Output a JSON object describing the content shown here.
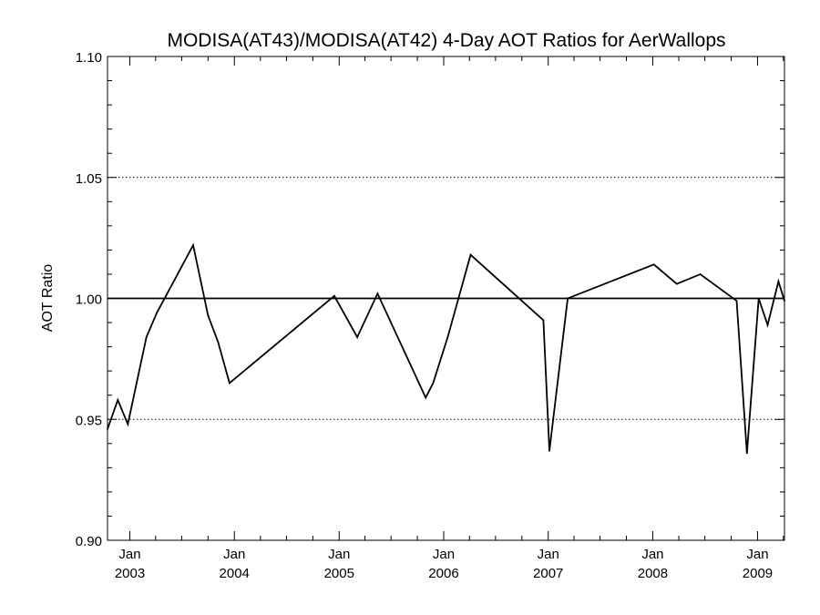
{
  "chart_data": {
    "type": "line",
    "title": "MODISA(AT43)/MODISA(AT42) 4-Day AOT Ratios for AerWallops",
    "xlabel": "",
    "ylabel": "AOT Ratio",
    "ylim": [
      0.9,
      1.1
    ],
    "xlim": [
      "2002-10-15",
      "2009-04-05"
    ],
    "y_ticks": [
      {
        "value": 0.9,
        "label": "0.90"
      },
      {
        "value": 0.95,
        "label": "0.95"
      },
      {
        "value": 1.0,
        "label": "1.00"
      },
      {
        "value": 1.05,
        "label": "1.05"
      },
      {
        "value": 1.1,
        "label": "1.10"
      }
    ],
    "x_ticks": [
      {
        "date": "2003-01-01",
        "month": "Jan",
        "year": "2003"
      },
      {
        "date": "2004-01-01",
        "month": "Jan",
        "year": "2004"
      },
      {
        "date": "2005-01-01",
        "month": "Jan",
        "year": "2005"
      },
      {
        "date": "2006-01-01",
        "month": "Jan",
        "year": "2006"
      },
      {
        "date": "2007-01-01",
        "month": "Jan",
        "year": "2007"
      },
      {
        "date": "2008-01-01",
        "month": "Jan",
        "year": "2008"
      },
      {
        "date": "2009-01-01",
        "month": "Jan",
        "year": "2009"
      }
    ],
    "dotted_gridlines_y": [
      0.95,
      1.05,
      1.1
    ],
    "reference_line_y": 1.0,
    "series": [
      {
        "points": [
          {
            "x": "2002-10-15",
            "y": 0.946
          },
          {
            "x": "2002-11-20",
            "y": 0.958
          },
          {
            "x": "2002-12-25",
            "y": 0.948
          },
          {
            "x": "2003-02-28",
            "y": 0.984
          },
          {
            "x": "2003-04-05",
            "y": 0.994
          },
          {
            "x": "2003-08-10",
            "y": 1.022
          },
          {
            "x": "2003-10-01",
            "y": 0.993
          },
          {
            "x": "2003-11-05",
            "y": 0.982
          },
          {
            "x": "2003-12-15",
            "y": 0.965
          },
          {
            "x": "2004-12-15",
            "y": 1.001
          },
          {
            "x": "2005-03-05",
            "y": 0.984
          },
          {
            "x": "2005-05-15",
            "y": 1.002
          },
          {
            "x": "2005-10-30",
            "y": 0.959
          },
          {
            "x": "2005-11-25",
            "y": 0.965
          },
          {
            "x": "2006-01-15",
            "y": 0.984
          },
          {
            "x": "2006-04-05",
            "y": 1.018
          },
          {
            "x": "2006-12-15",
            "y": 0.991
          },
          {
            "x": "2007-01-05",
            "y": 0.937
          },
          {
            "x": "2007-03-10",
            "y": 1.0
          },
          {
            "x": "2008-01-05",
            "y": 1.014
          },
          {
            "x": "2008-03-25",
            "y": 1.006
          },
          {
            "x": "2008-06-15",
            "y": 1.01
          },
          {
            "x": "2008-10-20",
            "y": 0.999
          },
          {
            "x": "2008-11-25",
            "y": 0.936
          },
          {
            "x": "2009-01-05",
            "y": 1.0
          },
          {
            "x": "2009-02-05",
            "y": 0.989
          },
          {
            "x": "2009-03-15",
            "y": 1.007
          },
          {
            "x": "2009-04-05",
            "y": 0.999
          }
        ]
      }
    ]
  }
}
